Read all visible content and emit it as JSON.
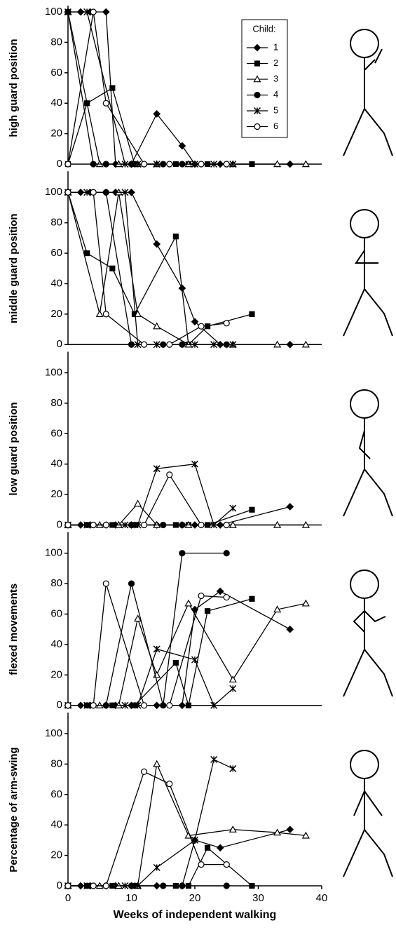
{
  "chart_data": [
    {
      "type": "line",
      "ylabel": "high guard position",
      "xlim": [
        0,
        40
      ],
      "ylim": [
        0,
        100
      ],
      "yticks": [
        0,
        20,
        40,
        60,
        80,
        100
      ],
      "color": "#000000",
      "legend_title": "Child:",
      "series": [
        {
          "name": "1",
          "marker": "diamond",
          "x": [
            0,
            2,
            3.5,
            6,
            7.5,
            10,
            14,
            18,
            20,
            24,
            35
          ],
          "values": [
            100,
            100,
            100,
            100,
            0,
            0,
            33,
            12,
            0,
            0,
            0
          ]
        },
        {
          "name": "2",
          "marker": "square",
          "x": [
            0,
            3,
            7,
            10.5,
            17,
            19,
            22,
            29
          ],
          "values": [
            0,
            40,
            50,
            0,
            0,
            0,
            0,
            0
          ]
        },
        {
          "name": "3",
          "marker": "triangle-open",
          "x": [
            0,
            5,
            8,
            11,
            14,
            19,
            26,
            33,
            37.5
          ],
          "values": [
            100,
            0,
            0,
            0,
            0,
            0,
            0,
            0,
            0
          ]
        },
        {
          "name": "4",
          "marker": "circle",
          "x": [
            0,
            4,
            6,
            10,
            15,
            18,
            25
          ],
          "values": [
            100,
            0,
            0,
            0,
            0,
            0,
            0
          ]
        },
        {
          "name": "5",
          "marker": "x",
          "x": [
            0,
            3,
            9,
            11,
            14,
            20,
            23,
            26
          ],
          "values": [
            100,
            100,
            0,
            0,
            0,
            0,
            0,
            0
          ]
        },
        {
          "name": "6",
          "marker": "circle-open",
          "x": [
            0,
            4,
            6,
            12,
            16,
            21,
            25
          ],
          "values": [
            0,
            100,
            40,
            0,
            0,
            0,
            0
          ]
        }
      ]
    },
    {
      "type": "line",
      "ylabel": "middle guard position",
      "xlim": [
        0,
        40
      ],
      "ylim": [
        0,
        100
      ],
      "yticks": [
        0,
        20,
        40,
        60,
        80,
        100
      ],
      "color": "#000000",
      "series": [
        {
          "marker": "diamond",
          "x": [
            0,
            2,
            3.5,
            6,
            7.5,
            10,
            14,
            18,
            20,
            24,
            35
          ],
          "values": [
            100,
            100,
            100,
            100,
            100,
            100,
            66,
            37,
            15,
            0,
            0
          ]
        },
        {
          "marker": "square",
          "x": [
            0,
            3,
            7,
            10.5,
            17,
            19,
            22,
            29
          ],
          "values": [
            100,
            60,
            50,
            20,
            71,
            0,
            12,
            20
          ]
        },
        {
          "marker": "triangle-open",
          "x": [
            0,
            5,
            8,
            11,
            14,
            19,
            26,
            33,
            37.5
          ],
          "values": [
            100,
            20,
            100,
            20,
            12,
            0,
            0,
            0,
            0
          ]
        },
        {
          "marker": "circle",
          "x": [
            0,
            4,
            6,
            10,
            15,
            18,
            25
          ],
          "values": [
            100,
            100,
            100,
            0,
            0,
            0,
            0
          ]
        },
        {
          "marker": "x",
          "x": [
            0,
            3,
            9,
            11,
            14,
            20,
            23,
            26
          ],
          "values": [
            100,
            100,
            100,
            0,
            0,
            0,
            0,
            0
          ]
        },
        {
          "marker": "circle-open",
          "x": [
            0,
            4,
            6,
            12,
            16,
            21,
            25
          ],
          "values": [
            100,
            100,
            20,
            0,
            0,
            12,
            14
          ]
        }
      ]
    },
    {
      "type": "line",
      "ylabel": "low guard position",
      "xlim": [
        0,
        40
      ],
      "ylim": [
        0,
        100
      ],
      "yticks": [
        0,
        20,
        40,
        60,
        80,
        100
      ],
      "color": "#000000",
      "series": [
        {
          "marker": "diamond",
          "x": [
            0,
            2,
            3.5,
            6,
            7.5,
            10,
            14,
            18,
            20,
            24,
            35
          ],
          "values": [
            0,
            0,
            0,
            0,
            0,
            0,
            0,
            0,
            0,
            0,
            12
          ]
        },
        {
          "marker": "square",
          "x": [
            0,
            3,
            7,
            10.5,
            17,
            19,
            22,
            29
          ],
          "values": [
            0,
            0,
            0,
            0,
            0,
            0,
            0,
            10
          ]
        },
        {
          "marker": "triangle-open",
          "x": [
            0,
            5,
            8,
            11,
            14,
            19,
            26,
            33,
            37.5
          ],
          "values": [
            0,
            0,
            0,
            14,
            0,
            0,
            0,
            0,
            0
          ]
        },
        {
          "marker": "circle",
          "x": [
            0,
            4,
            6,
            10,
            15,
            18,
            25
          ],
          "values": [
            0,
            0,
            0,
            0,
            0,
            0,
            0
          ]
        },
        {
          "marker": "x",
          "x": [
            0,
            3,
            9,
            11,
            14,
            20,
            23,
            26
          ],
          "values": [
            0,
            0,
            0,
            0,
            37,
            40,
            0,
            11
          ]
        },
        {
          "marker": "circle-open",
          "x": [
            0,
            4,
            6,
            12,
            16,
            21,
            25
          ],
          "values": [
            0,
            0,
            0,
            0,
            33,
            0,
            0
          ]
        }
      ]
    },
    {
      "type": "line",
      "ylabel": "flexed movements",
      "xlim": [
        0,
        40
      ],
      "ylim": [
        0,
        100
      ],
      "yticks": [
        0,
        20,
        40,
        60,
        80,
        100
      ],
      "color": "#000000",
      "series": [
        {
          "marker": "diamond",
          "x": [
            0,
            2,
            3.5,
            6,
            7.5,
            10,
            14,
            18,
            20,
            24,
            35
          ],
          "values": [
            0,
            0,
            0,
            0,
            0,
            0,
            0,
            0,
            63,
            75,
            50
          ]
        },
        {
          "marker": "square",
          "x": [
            0,
            3,
            7,
            10.5,
            17,
            19,
            22,
            29
          ],
          "values": [
            0,
            0,
            0,
            0,
            28,
            0,
            62,
            70
          ]
        },
        {
          "marker": "triangle-open",
          "x": [
            0,
            5,
            8,
            11,
            14,
            19,
            26,
            33,
            37.5
          ],
          "values": [
            0,
            0,
            0,
            57,
            20,
            67,
            17,
            63,
            67
          ]
        },
        {
          "marker": "circle",
          "x": [
            0,
            4,
            6,
            10,
            15,
            18,
            25
          ],
          "values": [
            0,
            0,
            0,
            80,
            0,
            100,
            100
          ]
        },
        {
          "marker": "x",
          "x": [
            0,
            3,
            9,
            11,
            14,
            20,
            23,
            26
          ],
          "values": [
            0,
            0,
            0,
            0,
            37,
            30,
            0,
            11
          ]
        },
        {
          "marker": "circle-open",
          "x": [
            0,
            4,
            6,
            12,
            16,
            21,
            25
          ],
          "values": [
            0,
            0,
            80,
            0,
            0,
            72,
            71
          ]
        }
      ]
    },
    {
      "type": "line",
      "ylabel": "Percentage of arm-swing",
      "xlabel": "Weeks of independent walking",
      "xlim": [
        0,
        40
      ],
      "xticks": [
        0,
        10,
        20,
        30,
        40
      ],
      "ylim": [
        0,
        100
      ],
      "yticks": [
        0,
        20,
        40,
        60,
        80,
        100
      ],
      "color": "#000000",
      "series": [
        {
          "marker": "diamond",
          "x": [
            0,
            2,
            3.5,
            6,
            7.5,
            10,
            14,
            18,
            20,
            24,
            35
          ],
          "values": [
            0,
            0,
            0,
            0,
            0,
            0,
            0,
            0,
            30,
            25,
            37
          ]
        },
        {
          "marker": "square",
          "x": [
            0,
            3,
            7,
            10.5,
            17,
            19,
            22,
            29
          ],
          "values": [
            0,
            0,
            0,
            0,
            0,
            0,
            25,
            0
          ]
        },
        {
          "marker": "triangle-open",
          "x": [
            0,
            5,
            8,
            11,
            14,
            19,
            26,
            33,
            37.5
          ],
          "values": [
            0,
            0,
            0,
            0,
            80,
            33,
            37,
            35,
            33
          ]
        },
        {
          "marker": "circle",
          "x": [
            0,
            4,
            6,
            10,
            15,
            18,
            25
          ],
          "values": [
            0,
            0,
            0,
            0,
            0,
            0,
            0
          ]
        },
        {
          "marker": "x",
          "x": [
            0,
            3,
            9,
            11,
            14,
            20,
            23,
            26
          ],
          "values": [
            0,
            0,
            0,
            0,
            12,
            30,
            83,
            77
          ]
        },
        {
          "marker": "circle-open",
          "x": [
            0,
            4,
            6,
            12,
            16,
            21,
            25
          ],
          "values": [
            0,
            0,
            0,
            75,
            67,
            14,
            14
          ]
        }
      ]
    }
  ]
}
